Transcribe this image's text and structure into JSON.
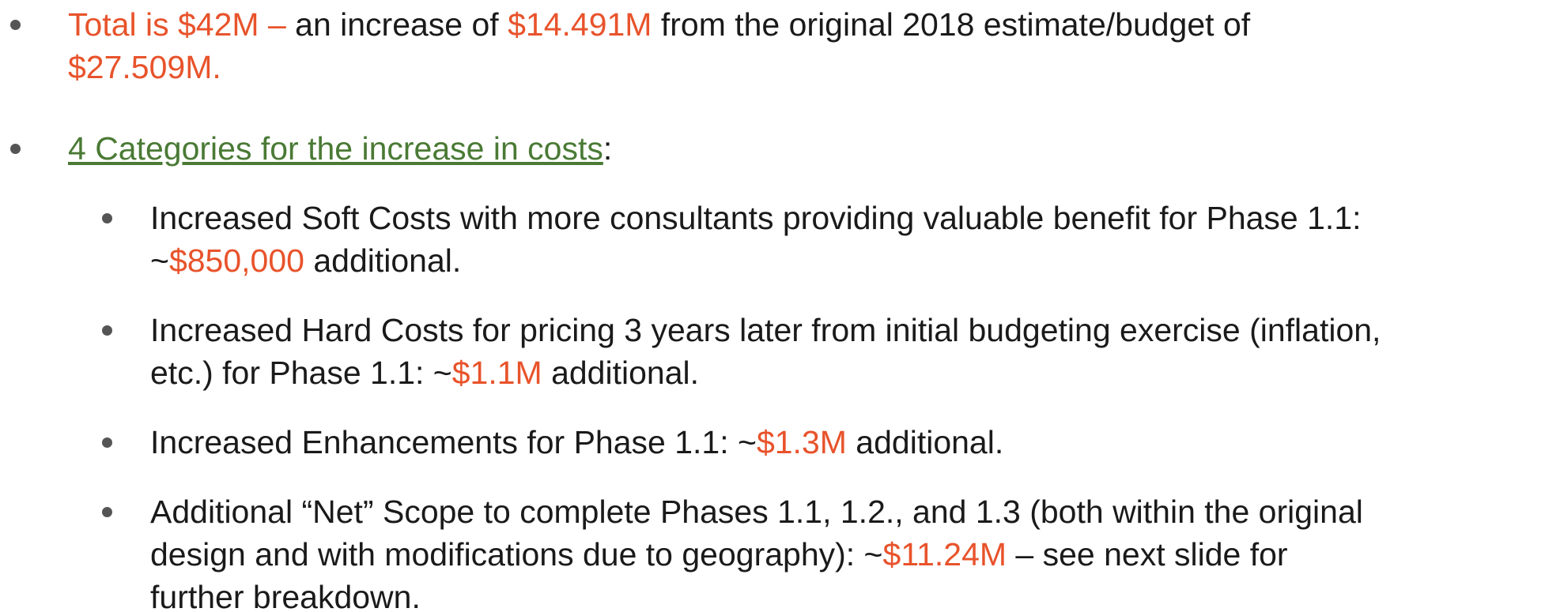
{
  "bullets": [
    {
      "lines": [
        [
          {
            "text": "Total is $42M –",
            "color": "#e8532b"
          },
          {
            "text": " an increase of ",
            "color": "#1a1a1a"
          },
          {
            "text": "$14.491M",
            "color": "#e8532b"
          },
          {
            "text": " from the original 2018 estimate/budget of",
            "color": "#1a1a1a"
          }
        ],
        [
          {
            "text": "$27.509M.",
            "color": "#e8532b"
          }
        ]
      ],
      "subbullets": []
    },
    {
      "lines": [
        [
          {
            "text": "4 Categories for the increase in costs",
            "color": "#4a7a35",
            "underline": true
          },
          {
            "text": ":",
            "color": "#1a1a1a"
          }
        ]
      ],
      "subbullets": [
        {
          "lines": [
            [
              {
                "text": "Increased Soft Costs with more consultants providing valuable benefit for Phase 1.1:",
                "color": "#1a1a1a"
              }
            ],
            [
              {
                "text": "~",
                "color": "#1a1a1a"
              },
              {
                "text": "$850,000",
                "color": "#e8532b"
              },
              {
                "text": " additional.",
                "color": "#1a1a1a"
              }
            ]
          ]
        },
        {
          "lines": [
            [
              {
                "text": "Increased Hard Costs for pricing 3 years later from initial budgeting exercise (inflation,",
                "color": "#1a1a1a"
              }
            ],
            [
              {
                "text": "etc.) for Phase 1.1: ~",
                "color": "#1a1a1a"
              },
              {
                "text": "$1.1M",
                "color": "#e8532b"
              },
              {
                "text": " additional.",
                "color": "#1a1a1a"
              }
            ]
          ]
        },
        {
          "lines": [
            [
              {
                "text": "Increased Enhancements for Phase 1.1: ~",
                "color": "#1a1a1a"
              },
              {
                "text": "$1.3M",
                "color": "#e8532b"
              },
              {
                "text": " additional.",
                "color": "#1a1a1a"
              }
            ]
          ]
        },
        {
          "lines": [
            [
              {
                "text": "Additional “Net” Scope to complete Phases 1.1, 1.2., and 1.3 (both within the original",
                "color": "#1a1a1a"
              }
            ],
            [
              {
                "text": "design and with modifications due to geography): ~",
                "color": "#1a1a1a"
              },
              {
                "text": "$11.24M",
                "color": "#e8532b"
              },
              {
                "text": " – see next slide for",
                "color": "#1a1a1a"
              }
            ],
            [
              {
                "text": "further breakdown.",
                "color": "#1a1a1a"
              }
            ]
          ]
        }
      ]
    }
  ]
}
